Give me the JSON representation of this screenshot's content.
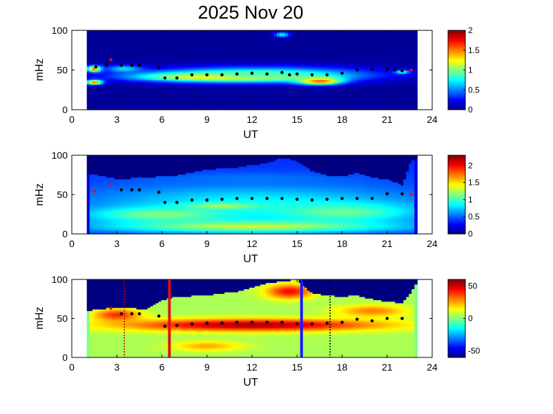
{
  "figure": {
    "title": "2025 Nov 20"
  },
  "chart_data": [
    {
      "type": "heatmap",
      "xlabel": "UT",
      "ylabel": "mHz",
      "xlim": [
        0,
        24
      ],
      "ylim": [
        0,
        100
      ],
      "xticks": [
        "0",
        "3",
        "6",
        "9",
        "12",
        "15",
        "18",
        "21",
        "24"
      ],
      "yticks": [
        "0",
        "50",
        "100"
      ],
      "colorbar": {
        "range": [
          0,
          2
        ],
        "ticks": [
          "0",
          "0.5",
          "1",
          "1.5",
          "2"
        ]
      },
      "data_extent": [
        1,
        23
      ],
      "background_value": 0.05,
      "blobs": [
        {
          "x": 10.5,
          "y": 42,
          "rx": 6.8,
          "ry": 7,
          "v": 2
        },
        {
          "x": 16.5,
          "y": 37,
          "rx": 1.8,
          "ry": 6,
          "v": 1.9
        },
        {
          "x": 12.5,
          "y": 45,
          "rx": 9,
          "ry": 12,
          "v": 0.9
        },
        {
          "x": 1.5,
          "y": 52,
          "rx": 0.6,
          "ry": 5,
          "v": 1.6
        },
        {
          "x": 1.5,
          "y": 35,
          "rx": 0.7,
          "ry": 4,
          "v": 1.5
        },
        {
          "x": 3.5,
          "y": 52,
          "rx": 1.5,
          "ry": 6,
          "v": 0.7
        },
        {
          "x": 14,
          "y": 95,
          "rx": 0.6,
          "ry": 4,
          "v": 0.8
        },
        {
          "x": 22,
          "y": 48,
          "rx": 0.6,
          "ry": 3,
          "v": 0.9
        }
      ],
      "marker_points": [
        [
          1.6,
          54
        ],
        [
          2.3,
          57
        ],
        [
          3.3,
          56
        ],
        [
          4,
          56
        ],
        [
          4.5,
          56
        ],
        [
          5.8,
          53
        ],
        [
          6.2,
          40
        ],
        [
          7,
          40
        ],
        [
          8,
          44
        ],
        [
          9,
          44
        ],
        [
          10,
          44
        ],
        [
          11,
          45
        ],
        [
          12,
          46
        ],
        [
          13,
          45
        ],
        [
          14,
          47
        ],
        [
          14.5,
          44
        ],
        [
          15,
          45
        ],
        [
          16,
          44
        ],
        [
          17,
          44
        ],
        [
          18,
          46
        ],
        [
          19,
          50
        ],
        [
          20,
          51
        ],
        [
          21,
          51
        ],
        [
          21.5,
          50
        ],
        [
          22,
          49
        ]
      ],
      "red_markers": [
        [
          2.6,
          63
        ],
        [
          22.6,
          50
        ]
      ]
    },
    {
      "type": "heatmap",
      "xlabel": "UT",
      "ylabel": "mHz",
      "xlim": [
        0,
        24
      ],
      "ylim": [
        0,
        100
      ],
      "xticks": [
        "0",
        "3",
        "6",
        "9",
        "12",
        "15",
        "18",
        "21",
        "24"
      ],
      "yticks": [
        "0",
        "50",
        "100"
      ],
      "colorbar": {
        "range": [
          0,
          2.3
        ],
        "ticks": [
          "0",
          "0.5",
          "1",
          "1.5",
          "2"
        ]
      },
      "data_extent": [
        1,
        23
      ],
      "background_value": 0.4,
      "edge_value": 0.2,
      "blobs": [
        {
          "x": 12,
          "y": 40,
          "rx": 14,
          "ry": 30,
          "v": 0.85
        },
        {
          "x": 10,
          "y": 36,
          "rx": 3,
          "ry": 5,
          "v": 1.25
        },
        {
          "x": 6,
          "y": 25,
          "rx": 6,
          "ry": 12,
          "v": 1.15
        },
        {
          "x": 18,
          "y": 28,
          "rx": 6,
          "ry": 15,
          "v": 1.1
        },
        {
          "x": 12,
          "y": 10,
          "rx": 12,
          "ry": 10,
          "v": 1.3
        },
        {
          "x": 12,
          "y": 70,
          "rx": 8,
          "ry": 10,
          "v": 0.55
        }
      ],
      "top_edge": [
        [
          1,
          78
        ],
        [
          3,
          70
        ],
        [
          5,
          72
        ],
        [
          7,
          75
        ],
        [
          9,
          82
        ],
        [
          11,
          85
        ],
        [
          12,
          88
        ],
        [
          13,
          90
        ],
        [
          14,
          97
        ],
        [
          15,
          93
        ],
        [
          16,
          80
        ],
        [
          17,
          75
        ],
        [
          18,
          73
        ],
        [
          19,
          78
        ],
        [
          20,
          72
        ],
        [
          21,
          70
        ],
        [
          22,
          62
        ],
        [
          22.6,
          92
        ],
        [
          23,
          98
        ]
      ],
      "marker_points": [
        [
          3.3,
          56
        ],
        [
          4,
          56
        ],
        [
          4.5,
          56
        ],
        [
          5.8,
          53
        ],
        [
          6.2,
          40
        ],
        [
          7,
          40
        ],
        [
          8,
          43
        ],
        [
          9,
          43
        ],
        [
          10,
          44
        ],
        [
          11,
          45
        ],
        [
          12,
          45
        ],
        [
          13,
          45
        ],
        [
          14,
          45
        ],
        [
          15,
          44
        ],
        [
          16,
          43
        ],
        [
          17,
          44
        ],
        [
          18,
          45
        ],
        [
          19,
          45
        ],
        [
          20,
          45
        ],
        [
          21,
          51
        ],
        [
          22,
          51
        ]
      ],
      "red_markers": [
        [
          1.5,
          54
        ],
        [
          2.6,
          63
        ],
        [
          22.6,
          50
        ]
      ]
    },
    {
      "type": "heatmap",
      "xlabel": "UT",
      "ylabel": "mHz",
      "xlim": [
        0,
        24
      ],
      "ylim": [
        0,
        100
      ],
      "xticks": [
        "0",
        "3",
        "6",
        "9",
        "12",
        "15",
        "18",
        "21",
        "24"
      ],
      "yticks": [
        "0",
        "50",
        "100"
      ],
      "colorbar": {
        "range": [
          -60,
          60
        ],
        "ticks": [
          "50",
          "0",
          "-50"
        ]
      },
      "data_extent": [
        1,
        23
      ],
      "background_value": 5,
      "edge_value": 0,
      "blobs": [
        {
          "x": 12,
          "y": 42,
          "rx": 11,
          "ry": 10,
          "v": 55
        },
        {
          "x": 14.5,
          "y": 85,
          "rx": 2,
          "ry": 12,
          "v": 45
        },
        {
          "x": 9,
          "y": 15,
          "rx": 3,
          "ry": 8,
          "v": 25
        },
        {
          "x": 3,
          "y": 55,
          "rx": 2,
          "ry": 10,
          "v": 40
        },
        {
          "x": 20,
          "y": 60,
          "rx": 3,
          "ry": 10,
          "v": 30
        }
      ],
      "top_edge": [
        [
          1,
          60
        ],
        [
          3,
          65
        ],
        [
          5,
          62
        ],
        [
          6,
          74
        ],
        [
          7,
          78
        ],
        [
          9,
          80
        ],
        [
          11,
          85
        ],
        [
          13,
          95
        ],
        [
          14,
          98
        ],
        [
          15,
          100
        ],
        [
          16,
          82
        ],
        [
          17,
          80
        ],
        [
          18,
          78
        ],
        [
          19,
          80
        ],
        [
          20,
          75
        ],
        [
          21,
          72
        ],
        [
          22,
          70
        ],
        [
          22.5,
          80
        ],
        [
          23,
          98
        ]
      ],
      "marker_points": [
        [
          3.3,
          56
        ],
        [
          4,
          56
        ],
        [
          4.5,
          56
        ],
        [
          5.8,
          53
        ],
        [
          6.2,
          40
        ],
        [
          7,
          41
        ],
        [
          8,
          43
        ],
        [
          9,
          44
        ],
        [
          10,
          44
        ],
        [
          11,
          45
        ],
        [
          12,
          45
        ],
        [
          13,
          45
        ],
        [
          14,
          45
        ],
        [
          15,
          43
        ],
        [
          16,
          43
        ],
        [
          17,
          44
        ],
        [
          18,
          45
        ],
        [
          19,
          49
        ],
        [
          20,
          47
        ],
        [
          21,
          50
        ],
        [
          22,
          50
        ]
      ],
      "red_markers": [
        [
          2.6,
          63
        ]
      ],
      "vlines": [
        {
          "x": 3.5,
          "style": "dotted",
          "color": "#c00000"
        },
        {
          "x": 6.5,
          "style": "solid",
          "color": "#e01010"
        },
        {
          "x": 15.3,
          "style": "solid",
          "color": "#1a1aff"
        },
        {
          "x": 17.2,
          "style": "dotted",
          "color": "#000000"
        }
      ]
    }
  ]
}
